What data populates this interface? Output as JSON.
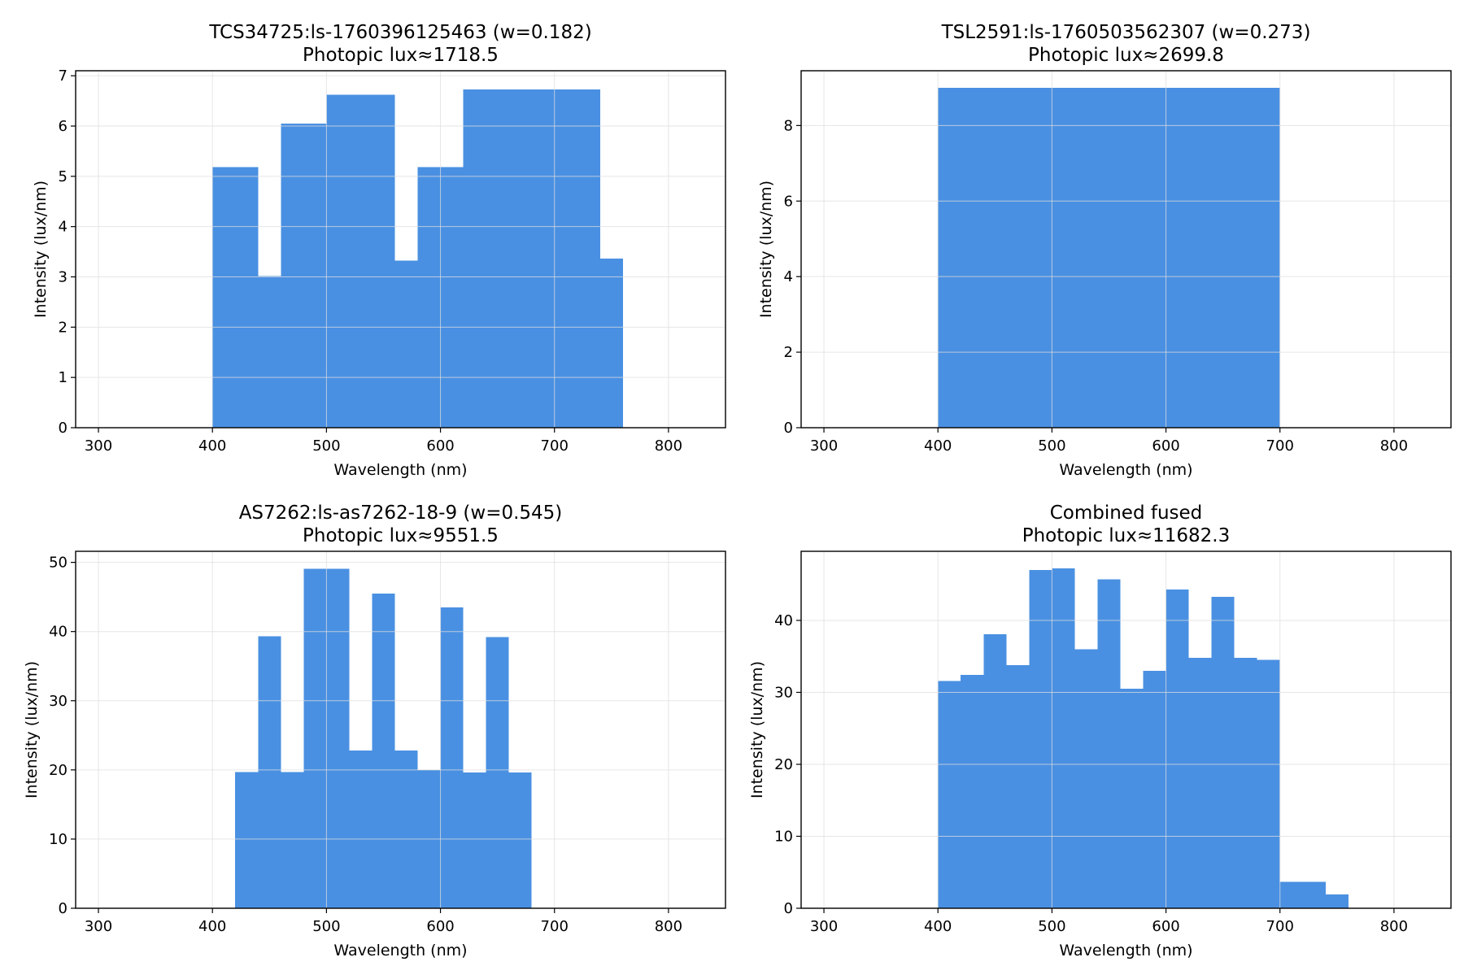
{
  "colors": {
    "bar": "#4a90e2",
    "grid": "#dddddd",
    "axis": "#000000",
    "background": "#ffffff"
  },
  "chart_data": [
    {
      "type": "bar",
      "title": "TCS34725:ls-1760396125463 (w=0.182)",
      "subtitle": "Photopic lux≈1718.5",
      "xlabel": "Wavelength (nm)",
      "ylabel": "Intensity (lux/nm)",
      "xlim": [
        280,
        850
      ],
      "ylim": [
        0,
        7.1
      ],
      "xticks": [
        300,
        400,
        500,
        600,
        700,
        800
      ],
      "yticks": [
        0,
        1,
        2,
        3,
        4,
        5,
        6,
        7
      ],
      "grid": true,
      "bins": [
        {
          "x0": 400,
          "x1": 440,
          "value": 5.18
        },
        {
          "x0": 440,
          "x1": 460,
          "value": 3.02
        },
        {
          "x0": 460,
          "x1": 500,
          "value": 6.05
        },
        {
          "x0": 500,
          "x1": 560,
          "value": 6.62
        },
        {
          "x0": 560,
          "x1": 580,
          "value": 3.32
        },
        {
          "x0": 580,
          "x1": 620,
          "value": 5.18
        },
        {
          "x0": 620,
          "x1": 740,
          "value": 6.73
        },
        {
          "x0": 740,
          "x1": 760,
          "value": 3.36
        }
      ]
    },
    {
      "type": "bar",
      "title": "TSL2591:ls-1760503562307 (w=0.273)",
      "subtitle": "Photopic lux≈2699.8",
      "xlabel": "Wavelength (nm)",
      "ylabel": "Intensity (lux/nm)",
      "xlim": [
        280,
        850
      ],
      "ylim": [
        0,
        9.45
      ],
      "xticks": [
        300,
        400,
        500,
        600,
        700,
        800
      ],
      "yticks": [
        0,
        2,
        4,
        6,
        8
      ],
      "grid": true,
      "bins": [
        {
          "x0": 400,
          "x1": 700,
          "value": 9.0
        }
      ]
    },
    {
      "type": "bar",
      "title": "AS7262:ls-as7262-18-9 (w=0.545)",
      "subtitle": "Photopic lux≈9551.5",
      "xlabel": "Wavelength (nm)",
      "ylabel": "Intensity (lux/nm)",
      "xlim": [
        280,
        850
      ],
      "ylim": [
        0,
        51.6
      ],
      "xticks": [
        300,
        400,
        500,
        600,
        700,
        800
      ],
      "yticks": [
        0,
        10,
        20,
        30,
        40,
        50
      ],
      "grid": true,
      "bins": [
        {
          "x0": 420,
          "x1": 440,
          "value": 19.7
        },
        {
          "x0": 440,
          "x1": 460,
          "value": 39.3
        },
        {
          "x0": 460,
          "x1": 480,
          "value": 19.7
        },
        {
          "x0": 480,
          "x1": 520,
          "value": 49.1
        },
        {
          "x0": 520,
          "x1": 540,
          "value": 22.8
        },
        {
          "x0": 540,
          "x1": 560,
          "value": 45.5
        },
        {
          "x0": 560,
          "x1": 580,
          "value": 22.8
        },
        {
          "x0": 580,
          "x1": 600,
          "value": 20.0
        },
        {
          "x0": 600,
          "x1": 620,
          "value": 43.5
        },
        {
          "x0": 620,
          "x1": 640,
          "value": 19.6
        },
        {
          "x0": 640,
          "x1": 660,
          "value": 39.2
        },
        {
          "x0": 660,
          "x1": 680,
          "value": 19.6
        }
      ]
    },
    {
      "type": "bar",
      "title": "Combined fused",
      "subtitle": "Photopic lux≈11682.3",
      "xlabel": "Wavelength (nm)",
      "ylabel": "Intensity (lux/nm)",
      "xlim": [
        280,
        850
      ],
      "ylim": [
        0,
        49.6
      ],
      "xticks": [
        300,
        400,
        500,
        600,
        700,
        800
      ],
      "yticks": [
        0,
        10,
        20,
        30,
        40
      ],
      "grid": true,
      "bins": [
        {
          "x0": 400,
          "x1": 420,
          "value": 31.6
        },
        {
          "x0": 420,
          "x1": 440,
          "value": 32.4
        },
        {
          "x0": 440,
          "x1": 460,
          "value": 38.1
        },
        {
          "x0": 460,
          "x1": 480,
          "value": 33.8
        },
        {
          "x0": 480,
          "x1": 500,
          "value": 47.0
        },
        {
          "x0": 500,
          "x1": 520,
          "value": 47.2
        },
        {
          "x0": 520,
          "x1": 540,
          "value": 36.0
        },
        {
          "x0": 540,
          "x1": 560,
          "value": 45.7
        },
        {
          "x0": 560,
          "x1": 580,
          "value": 30.5
        },
        {
          "x0": 580,
          "x1": 600,
          "value": 33.0
        },
        {
          "x0": 600,
          "x1": 620,
          "value": 44.3
        },
        {
          "x0": 620,
          "x1": 640,
          "value": 34.8
        },
        {
          "x0": 640,
          "x1": 660,
          "value": 43.3
        },
        {
          "x0": 660,
          "x1": 680,
          "value": 34.8
        },
        {
          "x0": 680,
          "x1": 700,
          "value": 34.5
        },
        {
          "x0": 700,
          "x1": 740,
          "value": 3.7
        },
        {
          "x0": 740,
          "x1": 760,
          "value": 1.9
        }
      ]
    }
  ]
}
